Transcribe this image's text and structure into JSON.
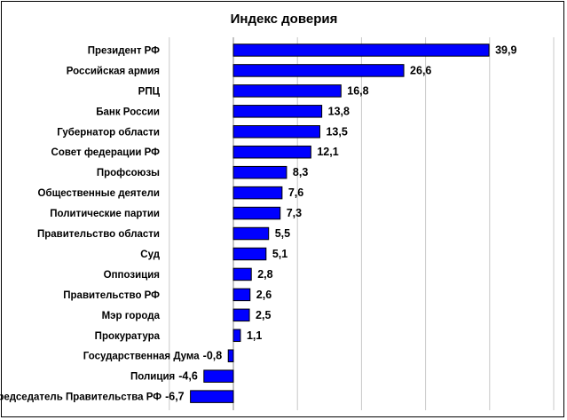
{
  "chart_data": {
    "type": "bar",
    "orientation": "horizontal",
    "title": "Индекс доверия",
    "xlabel": "",
    "ylabel": "",
    "grid": true,
    "legend": "none",
    "bar_color": "#0000FF",
    "xlim": [
      -10,
      50
    ],
    "categories": [
      "Президент РФ",
      "Российская армия",
      "РПЦ",
      "Банк России",
      "Губернатор области",
      "Совет федерации РФ",
      "Профсоюзы",
      "Общественные деятели",
      "Политические партии",
      "Правительство области",
      "Суд",
      "Оппозиция",
      "Правительство РФ",
      "Мэр города",
      "Прокуратура",
      "Государственная Дума",
      "Полиция",
      "Председатель Правительства РФ"
    ],
    "values": [
      39.9,
      26.6,
      16.8,
      13.8,
      13.5,
      12.1,
      8.3,
      7.6,
      7.3,
      5.5,
      5.1,
      2.8,
      2.6,
      2.5,
      1.1,
      -0.8,
      -4.6,
      -6.7
    ],
    "value_labels": [
      "39,9",
      "26,6",
      "16,8",
      "13,8",
      "13,5",
      "12,1",
      "8,3",
      "7,6",
      "7,3",
      "5,5",
      "5,1",
      "2,8",
      "2,6",
      "2,5",
      "1,1",
      "-0,8",
      "-4,6",
      "-6,7"
    ]
  }
}
